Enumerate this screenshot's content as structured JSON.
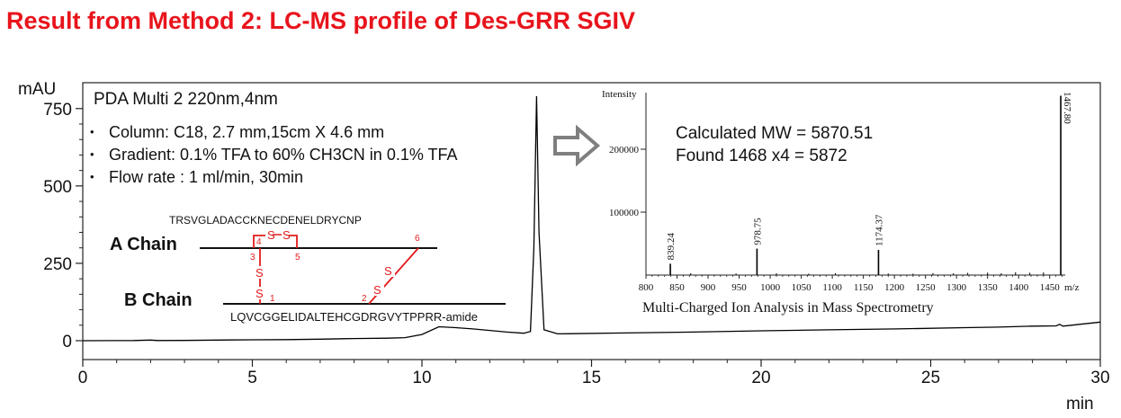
{
  "title": "Result from Method 2:  LC-MS profile of Des-GRR SGIV",
  "chromatogram": {
    "panel_label": "PDA Multi 2 220nm,4nm",
    "bullets": [
      "Column: C18, 2.7 mm,15cm X 4.6 mm",
      "Gradient: 0.1% TFA to 60% CH3CN in 0.1% TFA",
      "Flow rate : 1 ml/min, 30min"
    ]
  },
  "peptide_diagram": {
    "a_chain_label": "A Chain",
    "b_chain_label": "B Chain",
    "a_chain_sequence": "TRSVGLADACCKNECDENELDRYCNP",
    "b_chain_sequence": "LQVCGGELIDALTEHCGDRGVYTPPRR-amide",
    "cys_positions": [
      "1",
      "2",
      "3",
      "4",
      "5",
      "6"
    ],
    "bond_letter": "S"
  },
  "mass_spec": {
    "calc_text": "Calculated MW = 5870.51",
    "found_text": "Found 1468 x4 = 5872",
    "caption": "Multi-Charged Ion Analysis in Mass Spectrometry"
  },
  "chart_data": [
    {
      "type": "line",
      "name": "chromatogram",
      "ylabel": "mAU",
      "xlabel": "min",
      "xlim": [
        0,
        30
      ],
      "ylim": [
        -30,
        800
      ],
      "xticks": [
        0,
        5,
        10,
        15,
        20,
        25,
        30
      ],
      "yticks": [
        0,
        250,
        500,
        750
      ],
      "points": [
        [
          0,
          0
        ],
        [
          1.5,
          0.5
        ],
        [
          2.0,
          2
        ],
        [
          2.2,
          0.5
        ],
        [
          3.0,
          1
        ],
        [
          4.0,
          2
        ],
        [
          5.0,
          3
        ],
        [
          6.0,
          3.5
        ],
        [
          7.0,
          5
        ],
        [
          8.0,
          7
        ],
        [
          9.0,
          8
        ],
        [
          9.5,
          10
        ],
        [
          10.0,
          20
        ],
        [
          10.5,
          45
        ],
        [
          11.0,
          42
        ],
        [
          11.5,
          38
        ],
        [
          12.0,
          33
        ],
        [
          12.5,
          28
        ],
        [
          13.0,
          24
        ],
        [
          13.2,
          30
        ],
        [
          13.3,
          300
        ],
        [
          13.38,
          790
        ],
        [
          13.45,
          350
        ],
        [
          13.6,
          35
        ],
        [
          14.0,
          22
        ],
        [
          16.0,
          25
        ],
        [
          18.0,
          28
        ],
        [
          20.0,
          32
        ],
        [
          22.0,
          35
        ],
        [
          24.0,
          38
        ],
        [
          26.0,
          42
        ],
        [
          27.0,
          44
        ],
        [
          28.0,
          47
        ],
        [
          28.7,
          48
        ],
        [
          28.8,
          53
        ],
        [
          28.9,
          47
        ],
        [
          30.0,
          60
        ]
      ]
    },
    {
      "type": "bar",
      "name": "mass spectrum",
      "ylabel": "Intensity",
      "xlabel": "m/z",
      "xlim": [
        800,
        1475
      ],
      "ylim": [
        0,
        290000
      ],
      "xticks": [
        800,
        850,
        900,
        950,
        1000,
        1050,
        1100,
        1150,
        1200,
        1250,
        1300,
        1350,
        1400,
        1450
      ],
      "yticks": [
        100000,
        200000
      ],
      "peaks": [
        {
          "mz": 839.24,
          "intensity": 18000,
          "label": "839.24"
        },
        {
          "mz": 978.75,
          "intensity": 42000,
          "label": "978.75"
        },
        {
          "mz": 1174.37,
          "intensity": 40000,
          "label": "1174.37"
        },
        {
          "mz": 1467.8,
          "intensity": 285000,
          "label": "1467.80"
        }
      ],
      "noise": [
        {
          "mz": 872,
          "intensity": 3000
        },
        {
          "mz": 945,
          "intensity": 2500
        },
        {
          "mz": 1010,
          "intensity": 2800
        },
        {
          "mz": 1062,
          "intensity": 2200
        },
        {
          "mz": 1105,
          "intensity": 3000
        },
        {
          "mz": 1190,
          "intensity": 2500
        },
        {
          "mz": 1230,
          "intensity": 2200
        },
        {
          "mz": 1262,
          "intensity": 3200
        },
        {
          "mz": 1295,
          "intensity": 2800
        },
        {
          "mz": 1318,
          "intensity": 3500
        },
        {
          "mz": 1350,
          "intensity": 4000
        },
        {
          "mz": 1372,
          "intensity": 3000
        },
        {
          "mz": 1395,
          "intensity": 4500
        },
        {
          "mz": 1418,
          "intensity": 3800
        },
        {
          "mz": 1440,
          "intensity": 4200
        }
      ]
    }
  ]
}
